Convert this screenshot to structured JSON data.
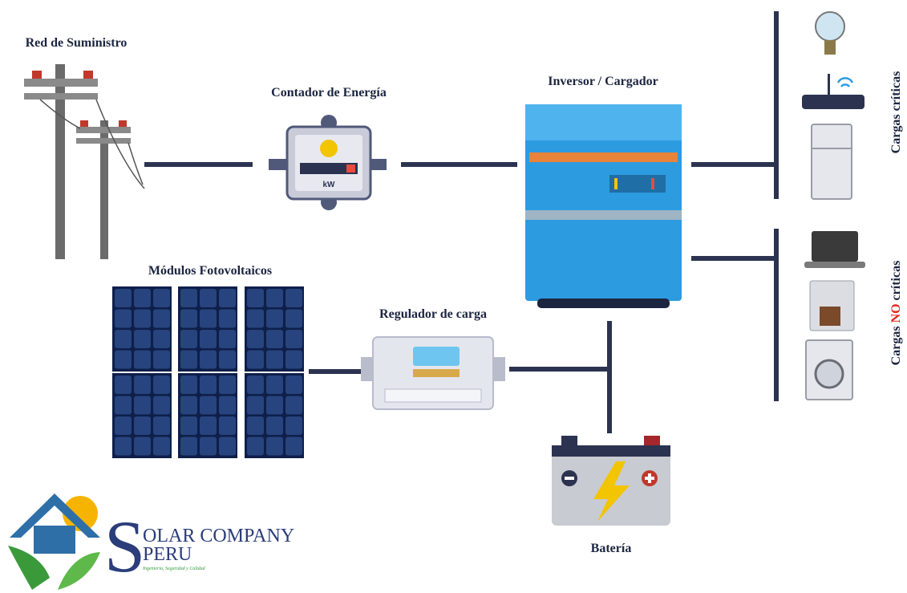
{
  "labels": {
    "grid": "Red de Suministro",
    "meter": "Contador de Energía",
    "inverter": "Inversor / Cargador",
    "pv": "Módulos Fotovoltaicos",
    "regulator": "Regulador de carga",
    "battery": "Batería"
  },
  "loads": {
    "critical": "Cargas críticas",
    "non_critical_start": "Cargas",
    "non_critical_highlight": "NO",
    "non_critical_end": "críticas"
  },
  "meter": {
    "unit": "kW"
  },
  "logo": {
    "initial": "S",
    "line1": "OLAR COMPANY",
    "line2": "PERU",
    "tagline": "Ingeniería, Seguridad y Calidad"
  }
}
